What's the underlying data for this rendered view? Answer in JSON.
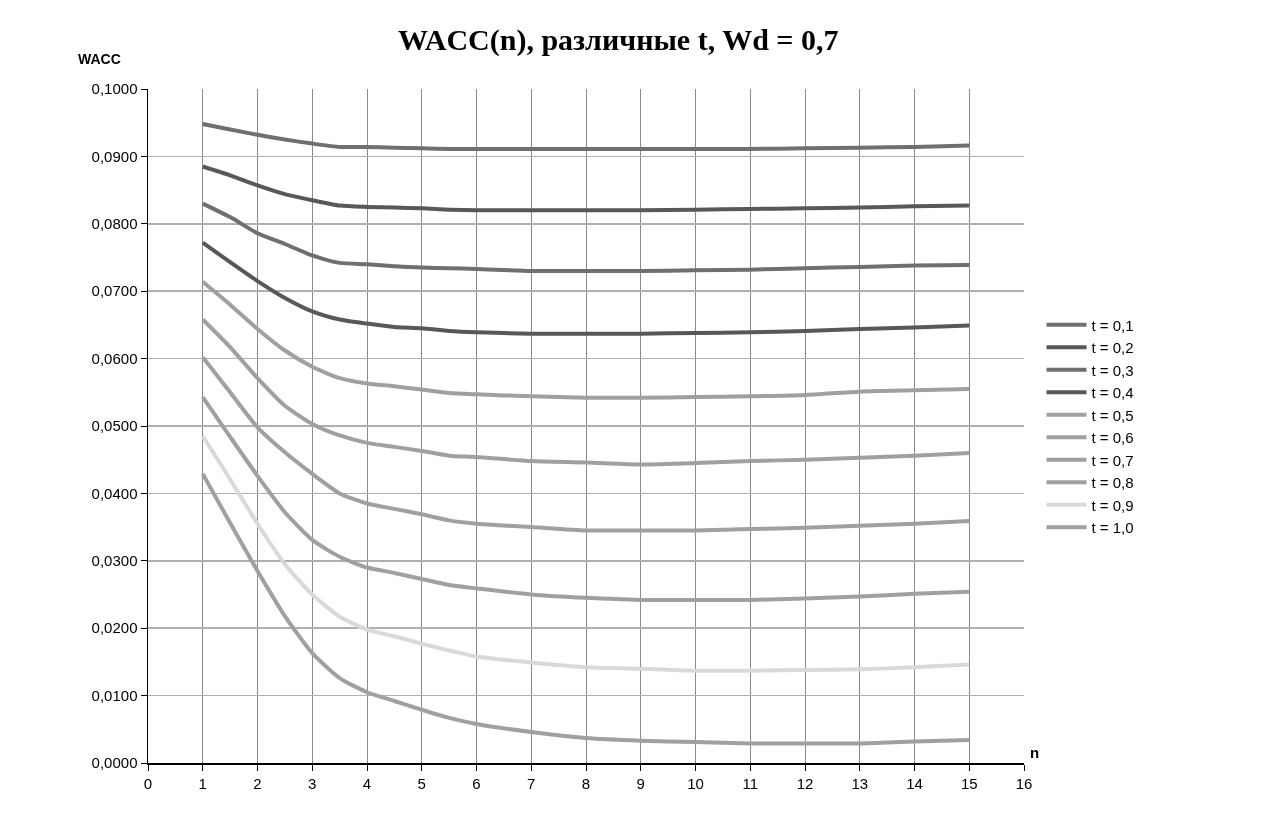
{
  "chart_data": {
    "type": "line",
    "title": "WACC(n), различные t, Wd = 0,7",
    "xlabel": "n",
    "ylabel": "WACC",
    "x": [
      1,
      1.5,
      2,
      2.5,
      3,
      3.5,
      4,
      4.5,
      5,
      5.5,
      6,
      7,
      8,
      9,
      10,
      11,
      12,
      13,
      14,
      15
    ],
    "series": [
      {
        "name": "t = 0,1",
        "color": "#6f6f6f",
        "values": [
          0.0948,
          0.094,
          0.0932,
          0.0925,
          0.0919,
          0.0914,
          0.0914,
          0.0913,
          0.0912,
          0.0911,
          0.0911,
          0.0911,
          0.0911,
          0.0911,
          0.0911,
          0.0911,
          0.0912,
          0.0913,
          0.0914,
          0.0916
        ]
      },
      {
        "name": "t = 0,2",
        "color": "#585858",
        "values": [
          0.0885,
          0.0872,
          0.0857,
          0.0844,
          0.0835,
          0.0827,
          0.0825,
          0.0824,
          0.0823,
          0.0821,
          0.082,
          0.082,
          0.082,
          0.082,
          0.0821,
          0.0822,
          0.0823,
          0.0824,
          0.0826,
          0.0827
        ]
      },
      {
        "name": "t = 0,3",
        "color": "#6f6f6f",
        "values": [
          0.083,
          0.081,
          0.0786,
          0.077,
          0.0753,
          0.0742,
          0.074,
          0.0737,
          0.0735,
          0.0734,
          0.0733,
          0.073,
          0.073,
          0.073,
          0.0731,
          0.0732,
          0.0734,
          0.0736,
          0.0738,
          0.0739
        ]
      },
      {
        "name": "t = 0,4",
        "color": "#585858",
        "values": [
          0.0772,
          0.0743,
          0.0715,
          0.069,
          0.067,
          0.0658,
          0.0652,
          0.0647,
          0.0645,
          0.0641,
          0.0639,
          0.0637,
          0.0637,
          0.0637,
          0.0638,
          0.0639,
          0.0641,
          0.0644,
          0.0646,
          0.0649
        ]
      },
      {
        "name": "t = 0,5",
        "color": "#a0a0a0",
        "values": [
          0.0714,
          0.068,
          0.0644,
          0.0612,
          0.0588,
          0.0571,
          0.0563,
          0.0559,
          0.0554,
          0.0549,
          0.0547,
          0.0544,
          0.0542,
          0.0542,
          0.0543,
          0.0544,
          0.0546,
          0.0551,
          0.0553,
          0.0555
        ]
      },
      {
        "name": "t = 0,6",
        "color": "#a0a0a0",
        "values": [
          0.0658,
          0.0617,
          0.0571,
          0.053,
          0.0503,
          0.0486,
          0.0475,
          0.0469,
          0.0463,
          0.0456,
          0.0454,
          0.0448,
          0.0446,
          0.0443,
          0.0445,
          0.0448,
          0.045,
          0.0453,
          0.0456,
          0.046
        ]
      },
      {
        "name": "t = 0,7",
        "color": "#a0a0a0",
        "values": [
          0.0602,
          0.055,
          0.0498,
          0.0461,
          0.0429,
          0.04,
          0.0385,
          0.0377,
          0.0369,
          0.036,
          0.0355,
          0.035,
          0.0345,
          0.0345,
          0.0345,
          0.0347,
          0.0349,
          0.0352,
          0.0355,
          0.0359
        ]
      },
      {
        "name": "t = 0,8",
        "color": "#a0a0a0",
        "values": [
          0.0543,
          0.0484,
          0.0426,
          0.0372,
          0.0331,
          0.0306,
          0.029,
          0.0282,
          0.0273,
          0.0264,
          0.0259,
          0.025,
          0.0245,
          0.0242,
          0.0242,
          0.0242,
          0.0244,
          0.0247,
          0.0251,
          0.0254
        ]
      },
      {
        "name": "t = 0,9",
        "color": "#d9d9d9",
        "values": [
          0.0485,
          0.0421,
          0.0355,
          0.0295,
          0.025,
          0.0217,
          0.0198,
          0.0188,
          0.0177,
          0.0167,
          0.0158,
          0.0149,
          0.0142,
          0.014,
          0.0137,
          0.0137,
          0.0138,
          0.0139,
          0.0142,
          0.0146
        ]
      },
      {
        "name": "t = 1,0",
        "color": "#a0a0a0",
        "values": [
          0.0429,
          0.0356,
          0.0285,
          0.0218,
          0.0163,
          0.0126,
          0.0105,
          0.0092,
          0.0079,
          0.0067,
          0.0058,
          0.0046,
          0.0037,
          0.0033,
          0.0031,
          0.0029,
          0.0029,
          0.0029,
          0.0032,
          0.0034
        ]
      }
    ],
    "xlim": [
      0,
      16
    ],
    "xticks": [
      0,
      1,
      2,
      3,
      4,
      5,
      6,
      7,
      8,
      9,
      10,
      11,
      12,
      13,
      14,
      15,
      16
    ],
    "ylim": [
      0,
      0.1
    ],
    "yticks": [
      {
        "value": 0,
        "label": "0,0000"
      },
      {
        "value": 0.01,
        "label": "0,0100"
      },
      {
        "value": 0.02,
        "label": "0,0200"
      },
      {
        "value": 0.03,
        "label": "0,0300"
      },
      {
        "value": 0.04,
        "label": "0,0400"
      },
      {
        "value": 0.05,
        "label": "0,0500"
      },
      {
        "value": 0.06,
        "label": "0,0600"
      },
      {
        "value": 0.07,
        "label": "0,0700"
      },
      {
        "value": 0.08,
        "label": "0,0800"
      },
      {
        "value": 0.09,
        "label": "0,0900"
      },
      {
        "value": 0.1,
        "label": "0,1000"
      }
    ],
    "grid": true,
    "legend": "right",
    "marker": "none",
    "line_style": "solid"
  }
}
